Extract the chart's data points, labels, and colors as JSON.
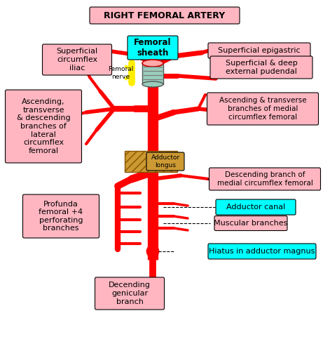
{
  "title": "RIGHT FEMORAL ARTERY",
  "bg": "#ffffff",
  "pink": "#ffb6c1",
  "cyan": "#00ffff",
  "artery": "#ff0000",
  "nerve_color": "#ffee00",
  "adductor_color": "#cc9933",
  "sheath_color": "#99ccbb",
  "labels": {
    "femoral_sheath": "Femoral\nsheath",
    "superficial_epigastric": "Superficial epigastric",
    "superficial_deep_pudendal": "Superficial & deep\nexternal pudendal",
    "superficial_circumflex": "Superficial\ncircumflex\niliac",
    "ascending_lateral": "Ascending,\ntransverse\n& descending\nbranches of\nlateral\ncircumflex\nfemoral",
    "ascending_medial": "Ascending & transverse\nbranches of medial\ncircumflex femoral",
    "descending_medial": "Descending branch of\nmedial circumflex femoral",
    "adductor_canal": "Adductor canal",
    "muscular_branches": "Muscular branches",
    "hiatus": "Hiatus in adductor magnus",
    "profunda": "Profunda\nfemoral +4\nperforating\nbranches",
    "decending_genicular": "Decending\ngenicular\nbranch",
    "femoral_nerve": "Femoral\nnerve",
    "adductor_longus": "Adductor\nlongus"
  }
}
